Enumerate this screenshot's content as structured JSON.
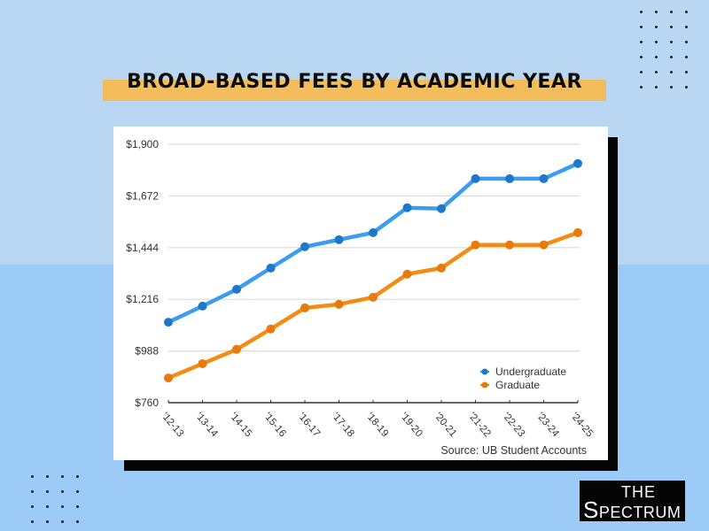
{
  "header": {
    "title": "BROAD-BASED FEES BY ACADEMIC YEAR"
  },
  "branding": {
    "logo_line1": "THE",
    "logo_line2_initial": "S",
    "logo_line2_rest": "PECTRUM"
  },
  "source_note": "Source: UB Student Accounts",
  "colors": {
    "background_top": "#b9d7f3",
    "background_bottom": "#9ccbf7",
    "title_band": "#f2bd5a",
    "undergraduate": "#3b9cf0",
    "undergraduate_marker": "#1f77c8",
    "graduate": "#f28c12",
    "graduate_marker": "#e67a0a"
  },
  "chart_data": {
    "type": "line",
    "title": "BROAD-BASED FEES BY ACADEMIC YEAR",
    "xlabel": "",
    "ylabel": "",
    "categories": [
      "'12-13",
      "'13-14",
      "'14-15",
      "'15-16",
      "'16-17",
      "'17-18",
      "'18-19",
      "'19-20",
      "'20-21",
      "'21-22",
      "'22-23",
      "'23-24",
      "'24-25"
    ],
    "series": [
      {
        "name": "Undergraduate",
        "values": [
          1115,
          1186,
          1260,
          1354,
          1448,
          1479,
          1510,
          1620,
          1616,
          1748,
          1748,
          1748,
          1815
        ]
      },
      {
        "name": "Graduate",
        "values": [
          869,
          932,
          995,
          1085,
          1178,
          1194,
          1225,
          1327,
          1354,
          1456,
          1456,
          1456,
          1510
        ]
      }
    ],
    "ylim": [
      760,
      1900
    ],
    "yticks": [
      760,
      988,
      1216,
      1444,
      1672,
      1900
    ],
    "ytick_labels": [
      "$760",
      "$988",
      "$1,216",
      "$1,444",
      "$1,672",
      "$1,900"
    ],
    "grid": true,
    "legend": {
      "position": "lower right",
      "entries": [
        "Undergraduate",
        "Graduate"
      ]
    },
    "annotations": [
      "Source: UB Student Accounts"
    ]
  }
}
